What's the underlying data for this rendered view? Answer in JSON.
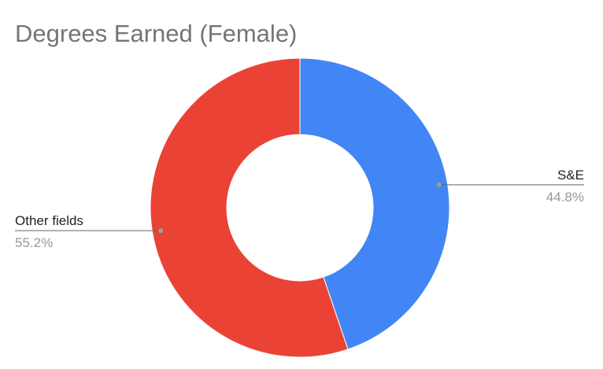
{
  "chart_data": {
    "type": "pie",
    "title": "Degrees Earned (Female)",
    "categories": [
      "S&E",
      "Other fields"
    ],
    "values": [
      44.8,
      55.2
    ],
    "value_labels": [
      "44.8%",
      "55.2%"
    ],
    "colors": [
      "#4285f4",
      "#ea4335"
    ],
    "donut": true
  }
}
